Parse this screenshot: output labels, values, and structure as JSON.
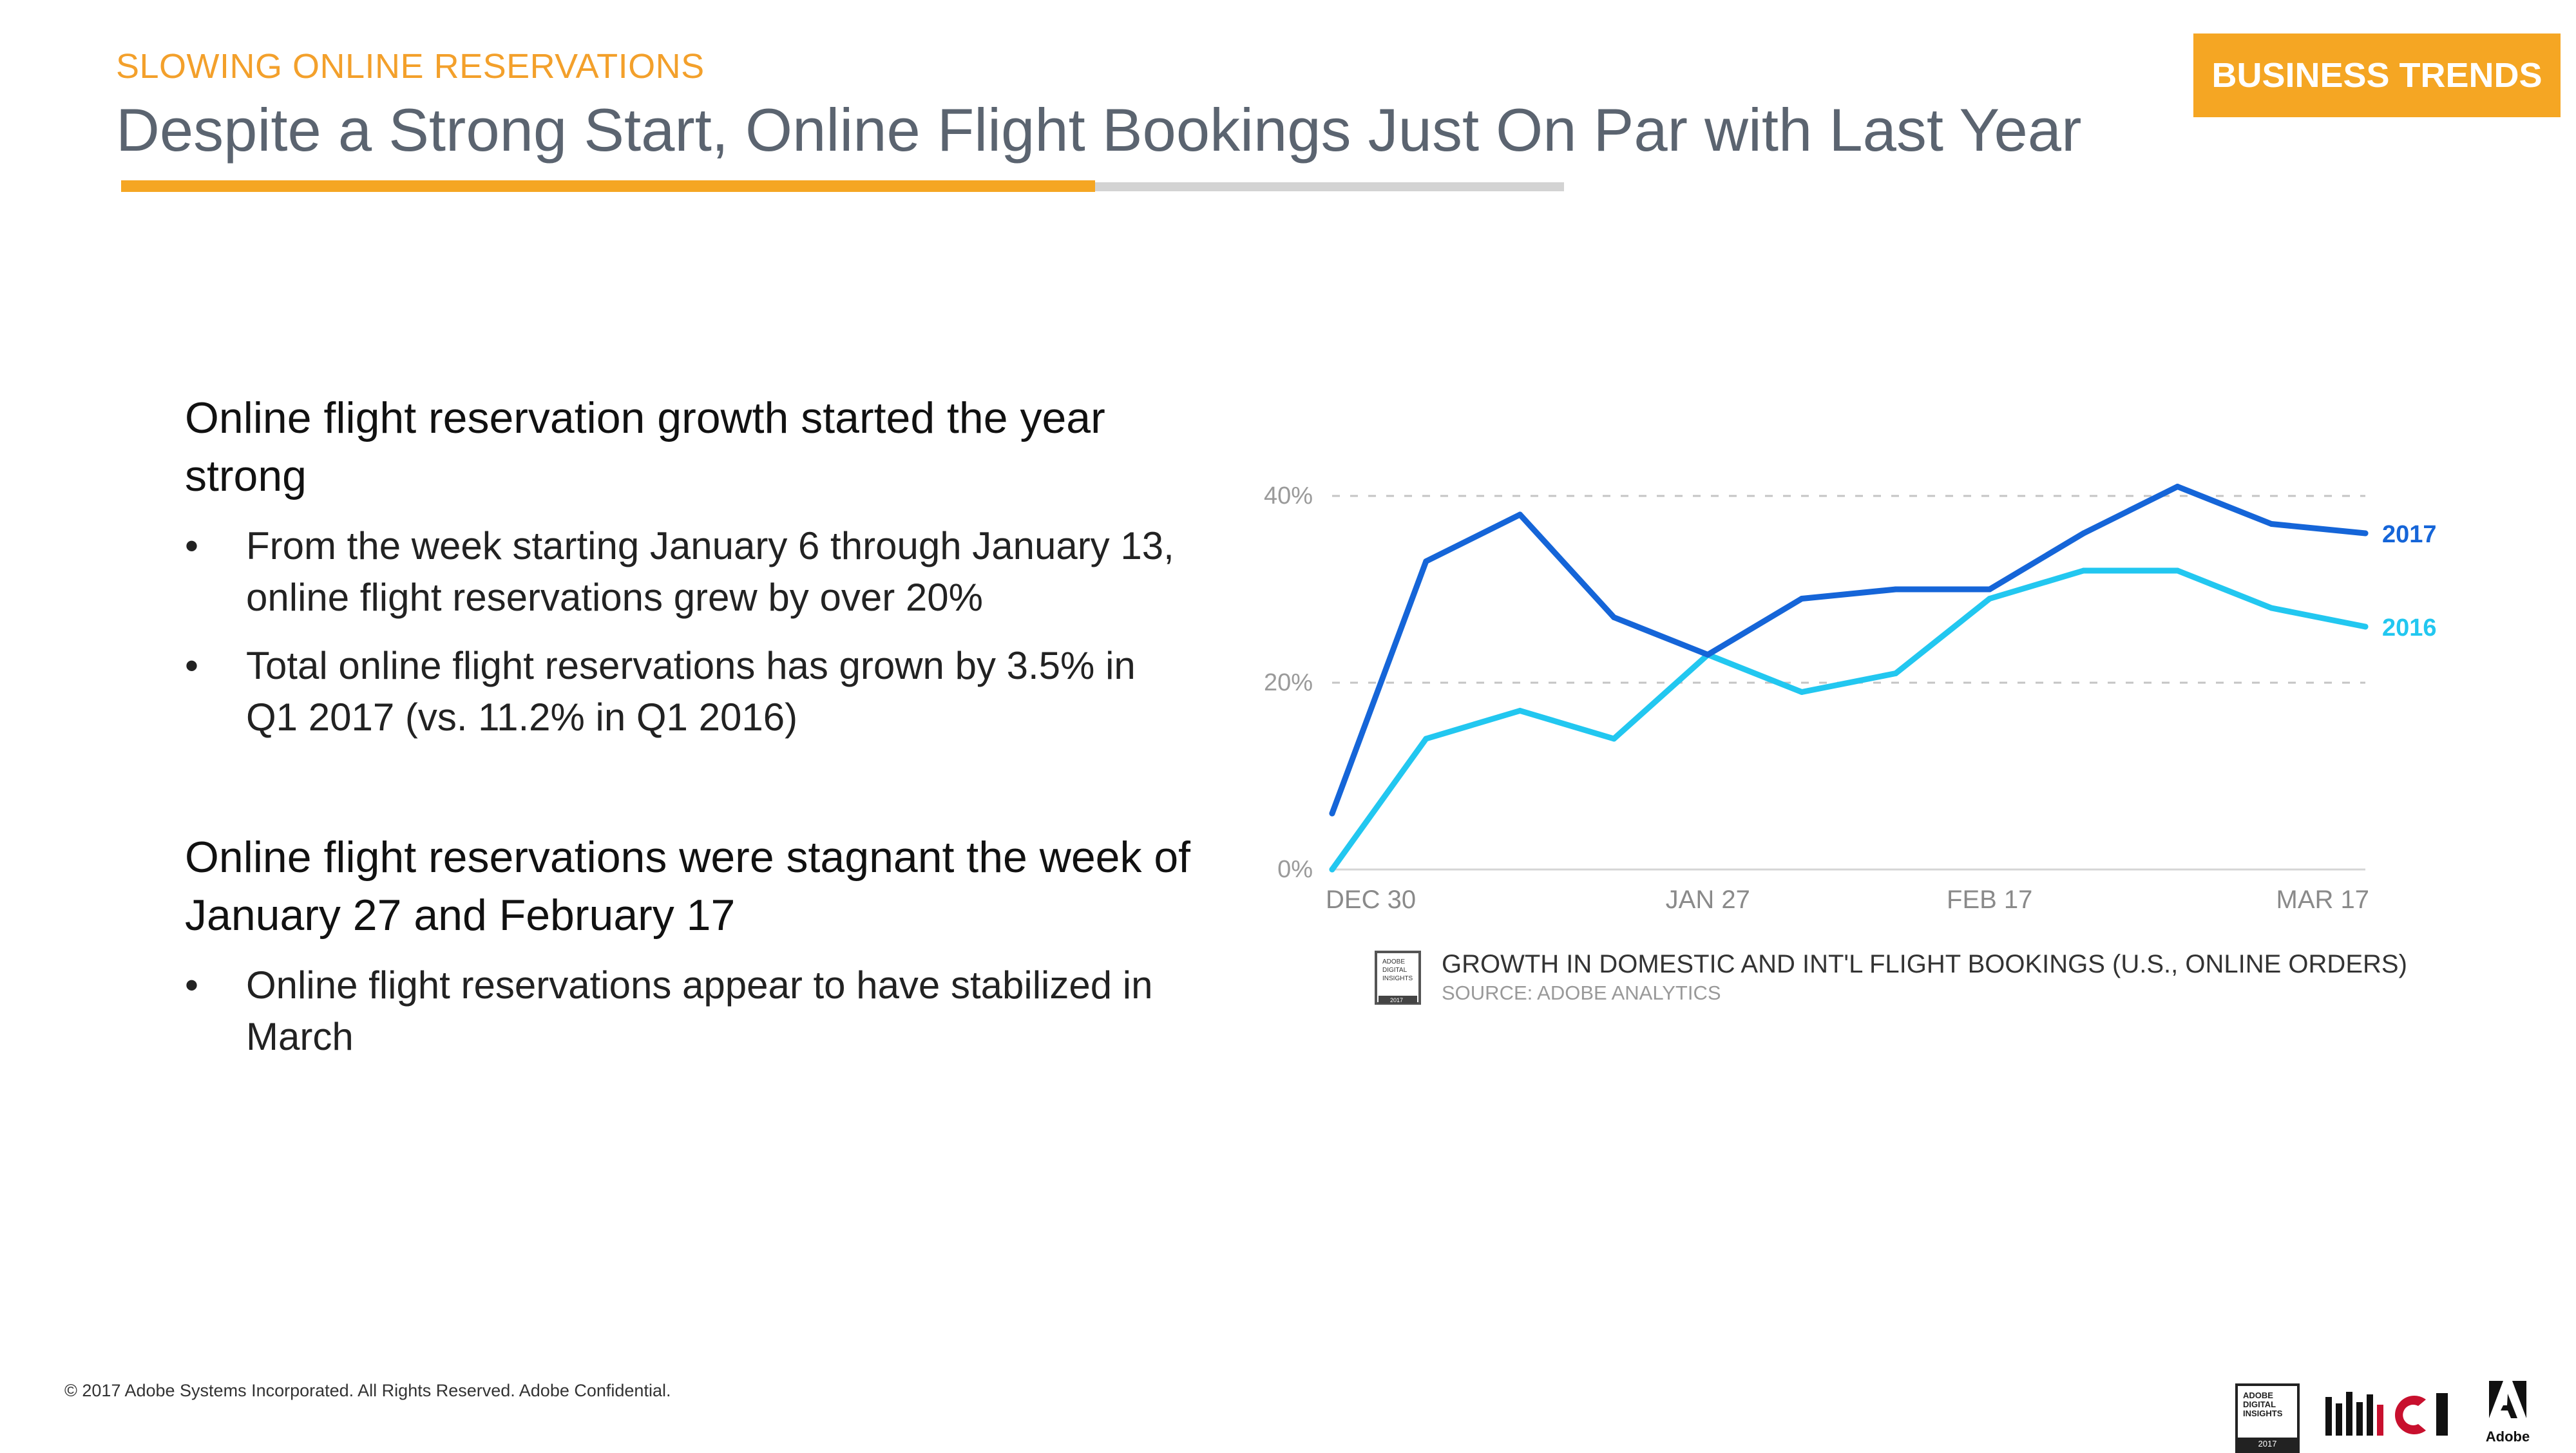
{
  "header": {
    "kicker": "SLOWING ONLINE RESERVATIONS",
    "title": "Despite a Strong Start, Online Flight Bookings Just On Par with Last Year",
    "badge": "BUSINESS TRENDS"
  },
  "sections": [
    {
      "heading": "Online flight reservation growth started the year strong",
      "bullets": [
        "From the week starting January 6 through January 13, online flight reservations grew by over 20%",
        "Total online flight reservations has grown by 3.5% in Q1 2017 (vs. 11.2% in Q1 2016)"
      ]
    },
    {
      "heading": "Online flight reservations were stagnant the week of January 27 and February 17",
      "bullets": [
        "Online flight reservations appear to have stabilized in March"
      ]
    }
  ],
  "chart_data": {
    "type": "line",
    "x_ticks": [
      "DEC 30",
      "JAN 27",
      "FEB 17",
      "MAR 17"
    ],
    "x_tick_index": [
      0,
      4,
      7,
      11
    ],
    "y_ticks": [
      "0%",
      "20%",
      "40%"
    ],
    "ylim": [
      0,
      40
    ],
    "grid": true,
    "legend": "inline-right",
    "series": [
      {
        "name": "2017",
        "color": "#1565d8",
        "values": [
          6,
          33,
          38,
          27,
          23,
          29,
          30,
          30,
          36,
          41,
          37,
          36
        ]
      },
      {
        "name": "2016",
        "color": "#22c7f0",
        "values": [
          0,
          14,
          17,
          14,
          23,
          19,
          21,
          29,
          32,
          32,
          28,
          26
        ]
      }
    ],
    "caption": "GROWTH IN DOMESTIC AND INT'L FLIGHT BOOKINGS (U.S., ONLINE ORDERS)",
    "source": "SOURCE: ADOBE ANALYTICS",
    "caption_logo_text": [
      "ADOBE",
      "DIGITAL",
      "INSIGHTS",
      "2017"
    ]
  },
  "footer": {
    "copyright": "© 2017 Adobe Systems Incorporated.  All Rights Reserved.  Adobe Confidential.",
    "logo_insights": [
      "ADOBE",
      "DIGITAL",
      "INSIGHTS",
      "2017"
    ],
    "logo_adobe": "Adobe"
  }
}
